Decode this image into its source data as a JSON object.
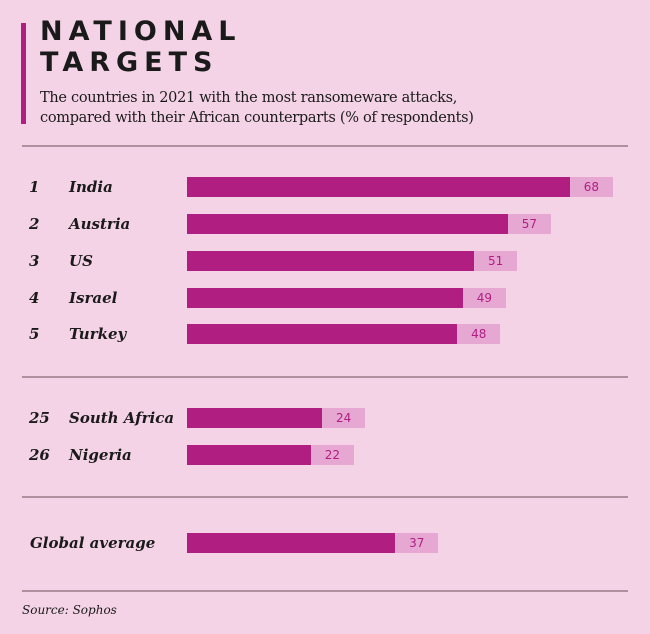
{
  "header": {
    "title_line1": "NATIONAL",
    "title_line2": "TARGETS",
    "subtitle_line1": "The countries in 2021 with the most ransomeware attacks,",
    "subtitle_line2": "compared with their African counterparts (% of respondents)"
  },
  "chart_data": {
    "type": "bar",
    "orientation": "horizontal",
    "unit": "% of respondents",
    "groups": [
      {
        "rows": [
          {
            "rank": "1",
            "name": "India",
            "value": 68
          },
          {
            "rank": "2",
            "name": "Austria",
            "value": 57
          },
          {
            "rank": "3",
            "name": "US",
            "value": 51
          },
          {
            "rank": "4",
            "name": "Israel",
            "value": 49
          },
          {
            "rank": "5",
            "name": "Turkey",
            "value": 48
          }
        ]
      },
      {
        "rows": [
          {
            "rank": "25",
            "name": "South Africa",
            "value": 24
          },
          {
            "rank": "26",
            "name": "Nigeria",
            "value": 22
          }
        ]
      },
      {
        "rows": [
          {
            "rank": "",
            "name": "Global average",
            "value": 37
          }
        ]
      }
    ],
    "colors": {
      "bar": "#b01e82",
      "label_bg": "#e6a8d2"
    }
  },
  "source": "Source: Sophos"
}
